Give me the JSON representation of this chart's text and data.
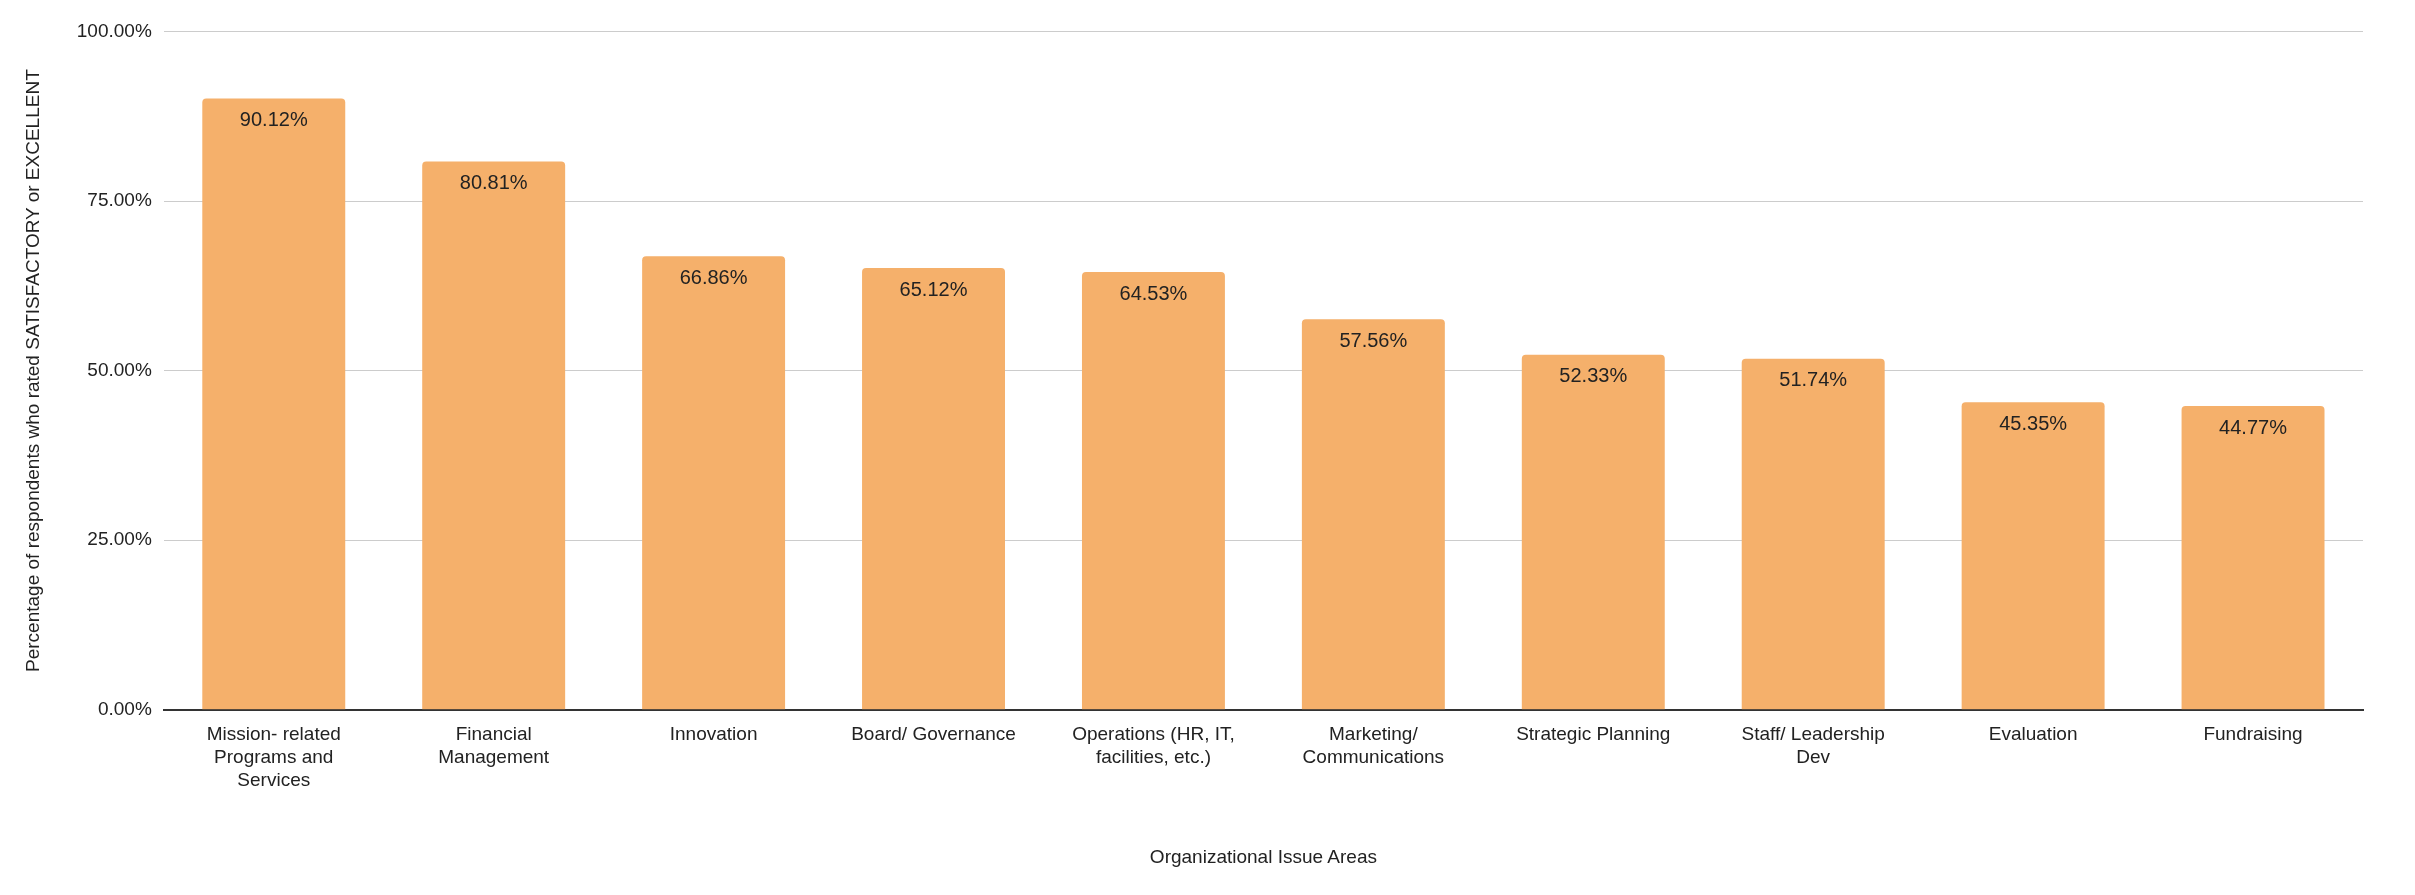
{
  "chart_data": {
    "type": "bar",
    "xlabel": "Organizational Issue Areas",
    "ylabel": "Percentage of respondents who rated SATISFACTORY or EXCELLENT",
    "categories": [
      "Mission- related Programs and Services",
      "Financial Management",
      "Innovation",
      "Board/ Governance",
      "Operations (HR, IT, facilities, etc.)",
      "Marketing/ Communications",
      "Strategic Planning",
      "Staff/ Leadership Dev",
      "Evaluation",
      "Fundraising"
    ],
    "values": [
      90.12,
      80.81,
      66.86,
      65.12,
      64.53,
      57.56,
      52.33,
      51.74,
      45.35,
      44.77
    ],
    "value_labels": [
      "90.12%",
      "80.81%",
      "66.86%",
      "65.12%",
      "64.53%",
      "57.56%",
      "52.33%",
      "51.74%",
      "45.35%",
      "44.77%"
    ],
    "color": "#f5b06b",
    "ylim": [
      0,
      100
    ],
    "yticks": [
      {
        "value": 0,
        "label": "0.00%"
      },
      {
        "value": 25,
        "label": "25.00%"
      },
      {
        "value": 50,
        "label": "50.00%"
      },
      {
        "value": 75,
        "label": "75.00%"
      },
      {
        "value": 100,
        "label": "100.00%"
      }
    ],
    "grid": "y",
    "legend": false
  }
}
